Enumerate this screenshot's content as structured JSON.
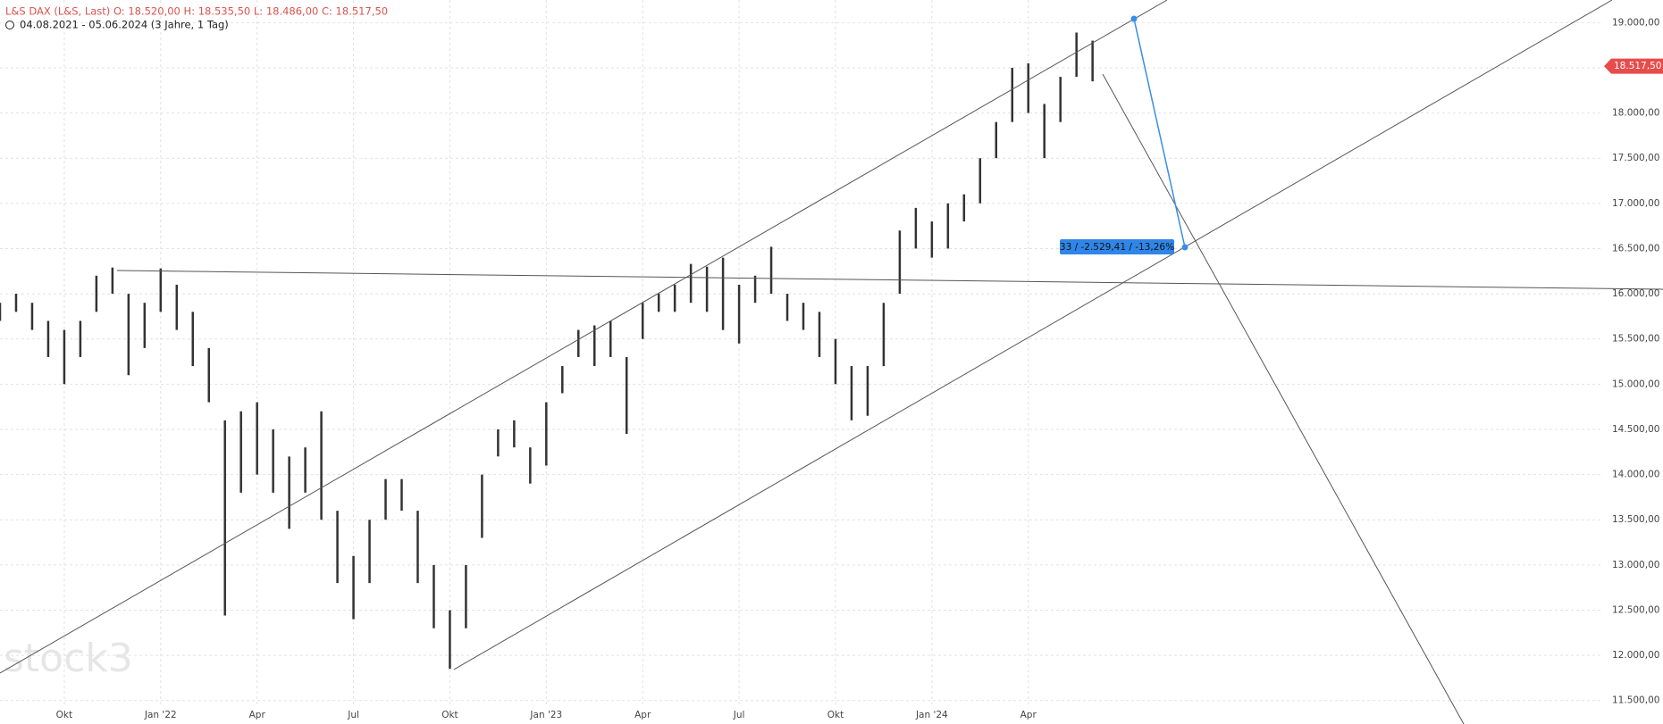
{
  "header": {
    "symbol_line": "L&S DAX (L&S, Last)  O: 18.520,00  H: 18.535,50  L: 18.486,00  C: 18.517,50",
    "range_line": "04.08.2021 - 05.06.2024  (3 Jahre, 1 Tag)",
    "watermark": "stock3"
  },
  "chart_data": {
    "type": "range-bar",
    "color": "#333333",
    "categories": [
      null,
      null,
      null,
      null,
      "Okt",
      null,
      null,
      null,
      null,
      null,
      "Jan '22",
      null,
      null,
      null,
      null,
      null,
      "Apr",
      null,
      null,
      null,
      null,
      null,
      "Jul",
      null,
      null,
      null,
      null,
      null,
      "Okt",
      null,
      null,
      null,
      null,
      null,
      "Jan '23",
      null,
      null,
      null,
      null,
      null,
      "Apr",
      null,
      null,
      null,
      null,
      null,
      "Jul",
      null,
      null,
      null,
      null,
      null,
      "Okt",
      null,
      null,
      null,
      null,
      null,
      "Jan '24",
      null,
      null,
      null,
      null,
      null,
      "Apr",
      null,
      null,
      null,
      null
    ],
    "high": [
      15900,
      16000,
      15900,
      15700,
      15600,
      15700,
      16200,
      16290,
      16000,
      15900,
      16280,
      16100,
      15800,
      15400,
      14600,
      14700,
      14800,
      14500,
      14200,
      14300,
      14700,
      13600,
      13100,
      13500,
      13950,
      13950,
      13600,
      13000,
      12500,
      13000,
      14000,
      14500,
      14600,
      14300,
      14800,
      15200,
      15600,
      15650,
      15700,
      15300,
      15900,
      16000,
      16100,
      16330,
      16300,
      16400,
      16100,
      16200,
      16520,
      16000,
      15900,
      15800,
      15500,
      15200,
      15200,
      15900,
      16700,
      16950,
      16800,
      17000,
      17100,
      17500,
      17900,
      18500,
      18550,
      18100,
      18400,
      18890,
      18800
    ],
    "low": [
      15700,
      15800,
      15600,
      15300,
      15000,
      15300,
      15800,
      16000,
      15100,
      15400,
      15800,
      15600,
      15200,
      14800,
      12440,
      13800,
      14000,
      13800,
      13400,
      13800,
      13500,
      12800,
      12400,
      12800,
      13500,
      13600,
      12800,
      12300,
      11850,
      12300,
      13300,
      14200,
      14300,
      13900,
      14100,
      14900,
      15300,
      15200,
      15300,
      14450,
      15500,
      15800,
      15800,
      15900,
      15800,
      15600,
      15450,
      15900,
      16000,
      15700,
      15600,
      15300,
      15000,
      14600,
      14650,
      15200,
      16000,
      16500,
      16400,
      16500,
      16800,
      17000,
      17500,
      17900,
      18000,
      17500,
      17900,
      18400,
      18350
    ],
    "ylim": [
      11250,
      19250
    ],
    "yticks": [
      {
        "value": 11500,
        "label": "11.500,00"
      },
      {
        "value": 12000,
        "label": "12.000,00"
      },
      {
        "value": 12500,
        "label": "12.500,00"
      },
      {
        "value": 13000,
        "label": "13.000,00"
      },
      {
        "value": 13500,
        "label": "13.500,00"
      },
      {
        "value": 14000,
        "label": "14.000,00"
      },
      {
        "value": 14500,
        "label": "14.500,00"
      },
      {
        "value": 15000,
        "label": "15.000,00"
      },
      {
        "value": 15500,
        "label": "15.500,00"
      },
      {
        "value": 16000,
        "label": "16.000,00"
      },
      {
        "value": 16500,
        "label": "16.500,00"
      },
      {
        "value": 17000,
        "label": "17.000,00"
      },
      {
        "value": 17500,
        "label": "17.500,00"
      },
      {
        "value": 18000,
        "label": "18.000,00"
      },
      {
        "value": 18500,
        "label": "18.500,00"
      },
      {
        "value": 19000,
        "label": "19.000,00"
      }
    ],
    "grid": true,
    "last_price": 18517.5,
    "last_price_label": "18.517,50",
    "annotations": [
      "33 / -2.529,41 / -13,26%"
    ]
  }
}
